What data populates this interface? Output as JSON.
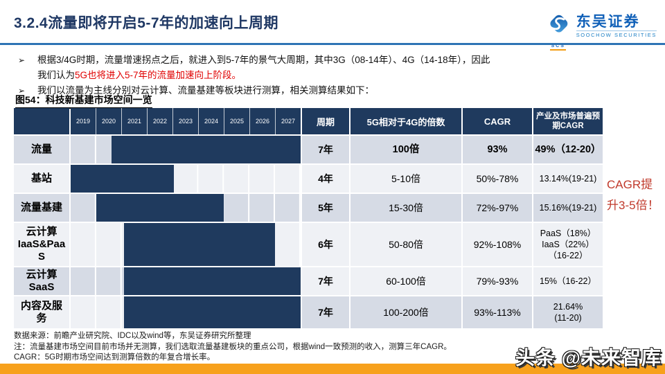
{
  "header": {
    "title": "3.2.4流量即将开启5-7年的加速向上周期",
    "logo": {
      "cn": "东吴证券",
      "en": "SOOCHOW SECURITIES",
      "abbr": "SCS"
    }
  },
  "bullets": {
    "marker": "➢",
    "b1_line1": "根据3/4G时期，流量增速拐点之后，就进入到5-7年的景气大周期，其中3G（08-14年）、4G（14-18年），因此",
    "b1_line2_black": "我们认为",
    "b1_line2_red": "5G也将进入5-7年的流量加速向上阶段。",
    "b2": "我们以流量为主线分别对云计算、流量基建等板块进行测算，相关测算结果如下："
  },
  "figure": {
    "caption": "图54：科技新基建市场空间一览"
  },
  "table": {
    "years": [
      "2019",
      "2020",
      "2021",
      "2022",
      "2023",
      "2024",
      "2025",
      "2026",
      "2027"
    ],
    "columns": {
      "period": "周期",
      "multiple": "5G相对于4G的倍数",
      "cagr": "CAGR",
      "expected": "产业及市场普遍预期CAGR"
    },
    "rows": [
      {
        "label": "流量",
        "bar_start": 1.6,
        "bar_end": 9,
        "period": "7年",
        "multiple": "100倍",
        "cagr": "93%",
        "expected": "49%（12-20）",
        "bold": true,
        "label_band": "dark",
        "gantt_band": "dark",
        "data_band": "dark"
      },
      {
        "label": "基站",
        "bar_start": 0,
        "bar_end": 4.05,
        "period": "4年",
        "multiple": "5-10倍",
        "cagr": "50%-78%",
        "expected": "13.14%(19-21)",
        "bold": false,
        "label_band": "light",
        "gantt_band": "light",
        "data_band": "light"
      },
      {
        "label": "流量基建",
        "bar_start": 1,
        "bar_end": 6,
        "period": "5年",
        "multiple": "15-30倍",
        "cagr": "72%-97%",
        "expected": "15.16%(19-21)",
        "bold": false,
        "label_band": "dark",
        "gantt_band": "dark",
        "data_band": "dark"
      },
      {
        "label": "云计算\nIaaS&Paa\nS",
        "bar_start": 2.1,
        "bar_end": 8,
        "period": "6年",
        "multiple": "50-80倍",
        "cagr": "92%-108%",
        "expected": "PaaS（18%）\nIaaS（22%）\n（16-22）",
        "bold": false,
        "label_band": "light",
        "gantt_band": "light",
        "data_band": "light"
      },
      {
        "label": "云计算\nSaaS",
        "bar_start": 2.1,
        "bar_end": 9,
        "period": "7年",
        "multiple": "60-100倍",
        "cagr": "79%-93%",
        "expected": "15%（16-22）",
        "bold": false,
        "label_band": "dark",
        "gantt_band": "dark",
        "data_band": "light"
      },
      {
        "label": "内容及服\n务",
        "bar_start": 2.1,
        "bar_end": 9,
        "period": "7年",
        "multiple": "100-200倍",
        "cagr": "93%-113%",
        "expected": "21.64%\n(11-20)",
        "bold": false,
        "label_band": "light",
        "gantt_band": "light",
        "data_band": "dark"
      }
    ]
  },
  "annotation": {
    "text": "CAGR提升3-5倍！"
  },
  "notes": {
    "line1": "数据来源：前瞻产业研究院、IDC以及wind等，东吴证券研究所整理",
    "line2": "注：流量基建市场空间目前市场并无测算，我们选取流量基建板块的重点公司，根据wind一致预测的收入，测算三年CAGR。",
    "line3": "CAGR：5G时期市场空间达到测算倍数的年复合增长率。"
  },
  "footer": {
    "watermark": "头条 @未来智库"
  },
  "colors": {
    "navy": "#1f3a5e",
    "band_dark": "#d6dbe5",
    "band_light": "#eff1f5",
    "accent_blue": "#2e74b5",
    "title_navy": "#1f3864",
    "bullet_red": "#e00000",
    "annotation_red": "#c0392b",
    "orange_bar": "#f7a11c",
    "logo_blue": "#1060b8"
  }
}
